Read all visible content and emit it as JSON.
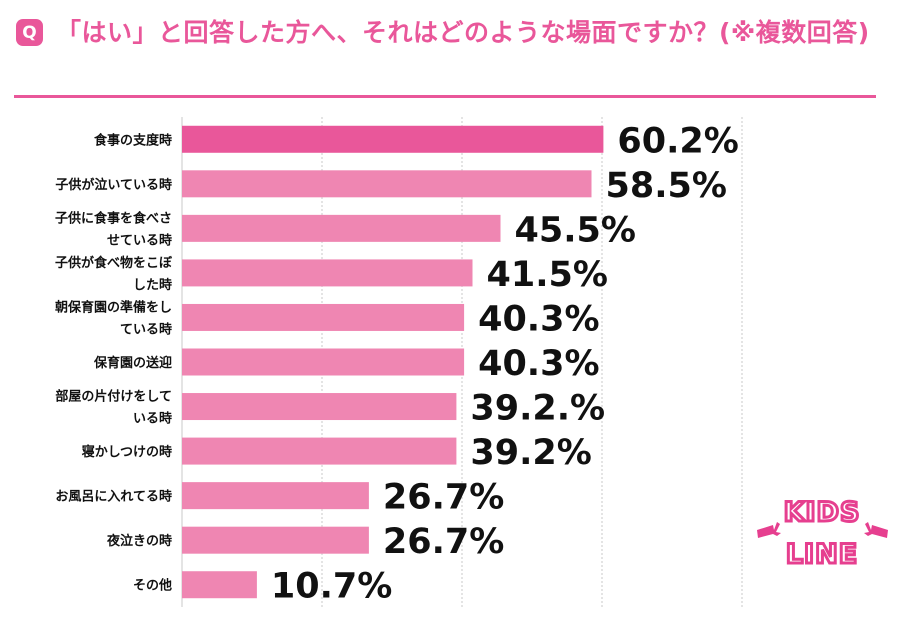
{
  "header": {
    "badge": "Q",
    "title": "「はい」と回答した方へ、それはどのような場面ですか？(※複数回答)"
  },
  "logo": {
    "line1": "KIDS",
    "line2": "LINE"
  },
  "colors": {
    "accent": "#e9579a",
    "bar_top": "#e9579a",
    "bar": "#ef86b2",
    "grid": "#c9c9c9",
    "text": "#111111"
  },
  "chart_data": {
    "type": "bar",
    "orientation": "horizontal",
    "unit": "%",
    "categories": [
      [
        "食事の支度時"
      ],
      [
        "子供が泣いている時"
      ],
      [
        "子供に食事を食べさ",
        "せている時"
      ],
      [
        "子供が食べ物をこぼ",
        "した時"
      ],
      [
        "朝保育園の準備をし",
        "ている時"
      ],
      [
        "保育園の送迎"
      ],
      [
        "部屋の片付けをして",
        "いる時"
      ],
      [
        "寝かしつけの時"
      ],
      [
        "お風呂に入れてる時"
      ],
      [
        "夜泣きの時"
      ],
      [
        "その他"
      ]
    ],
    "values": [
      60.2,
      58.5,
      45.5,
      41.5,
      40.3,
      40.3,
      39.2,
      39.2,
      26.7,
      26.7,
      10.7
    ],
    "labels": [
      "60.2%",
      "58.5%",
      "45.5%",
      "41.5%",
      "40.3%",
      "40.3%",
      "39.2.%",
      "39.2%",
      "26.7%",
      "26.7%",
      "10.7%"
    ],
    "xlim": [
      0,
      100
    ],
    "grid": true
  }
}
